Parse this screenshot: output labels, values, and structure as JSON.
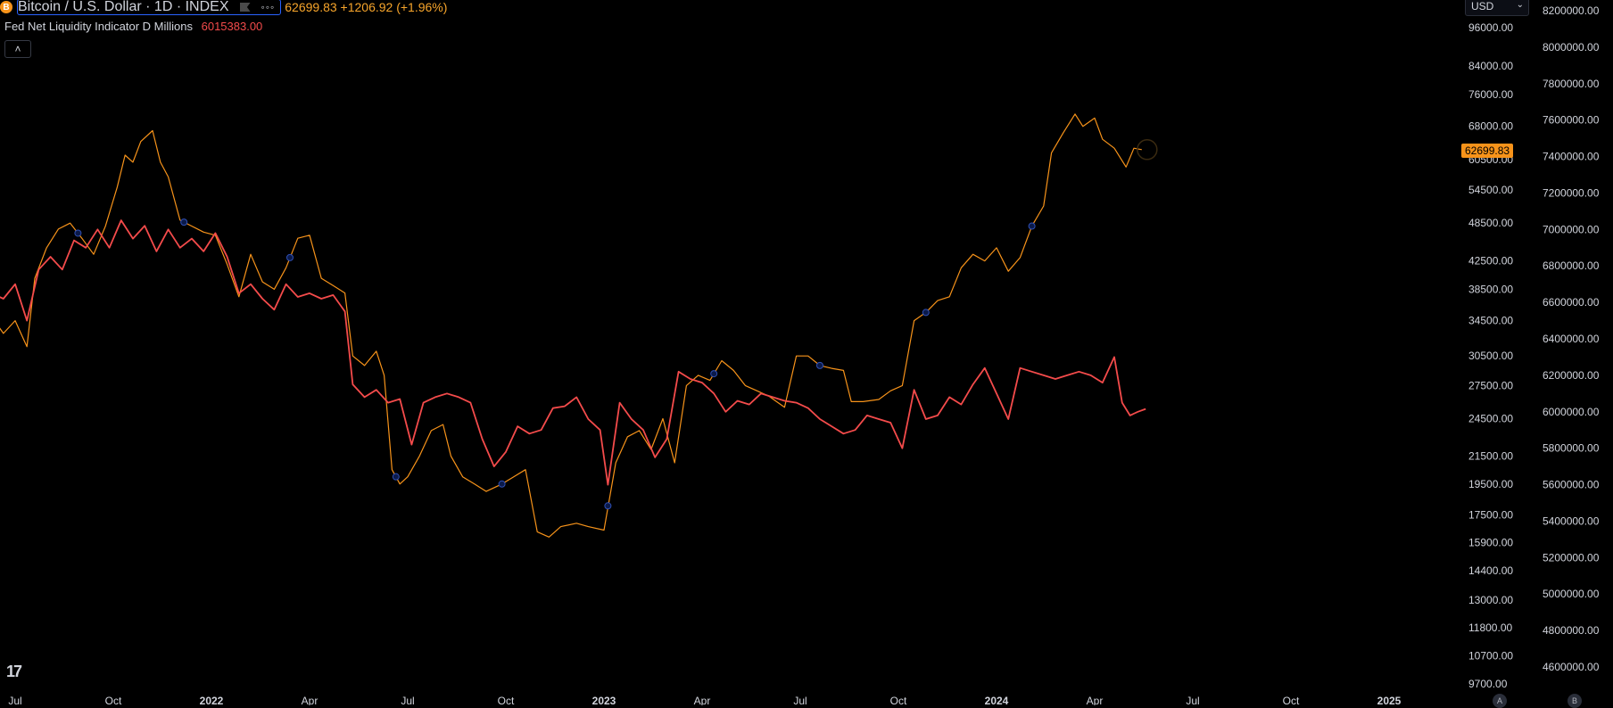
{
  "header": {
    "title": "Bitcoin / U.S. Dollar · 1D · INDEX",
    "btc_symbol": "B",
    "dots": "◦◦◦",
    "quote": "62699.83 +1206.92 (+1.96%)"
  },
  "indicator": {
    "name": "Fed Net Liquidity Indicator D Millions",
    "value": "6015383.00"
  },
  "collapse_glyph": "˄",
  "currency_selector": {
    "value": "USD",
    "chevron": "⌄"
  },
  "last_price_label": "62699.83",
  "logo_text": "17",
  "scale_buttons": [
    "A",
    "B"
  ],
  "chart_data": {
    "type": "line",
    "colors": {
      "btc": "#f7931a",
      "liquidity": "#f44b4b",
      "text": "#d1d4dc",
      "background": "#000000"
    },
    "x_tick_labels": [
      {
        "t": 2021.5,
        "label": "Jul",
        "bold": false
      },
      {
        "t": 2021.75,
        "label": "Oct",
        "bold": false
      },
      {
        "t": 2022.0,
        "label": "2022",
        "bold": true
      },
      {
        "t": 2022.25,
        "label": "Apr",
        "bold": false
      },
      {
        "t": 2022.5,
        "label": "Jul",
        "bold": false
      },
      {
        "t": 2022.75,
        "label": "Oct",
        "bold": false
      },
      {
        "t": 2023.0,
        "label": "2023",
        "bold": true
      },
      {
        "t": 2023.25,
        "label": "Apr",
        "bold": false
      },
      {
        "t": 2023.5,
        "label": "Jul",
        "bold": false
      },
      {
        "t": 2023.75,
        "label": "Oct",
        "bold": false
      },
      {
        "t": 2024.0,
        "label": "2024",
        "bold": true
      },
      {
        "t": 2024.25,
        "label": "Apr",
        "bold": false
      },
      {
        "t": 2024.5,
        "label": "Jul",
        "bold": false
      },
      {
        "t": 2024.75,
        "label": "Oct",
        "bold": false
      },
      {
        "t": 2025.0,
        "label": "2025",
        "bold": true
      }
    ],
    "left_axis_ticks": [
      96000,
      84000,
      76000,
      68000,
      60500,
      54500,
      48500,
      42500,
      38500,
      34500,
      30500,
      27500,
      24500,
      21500,
      19500,
      17500,
      15900,
      14400,
      13000,
      11800,
      10700,
      9700
    ],
    "left_axis_scale": "log",
    "right_axis_ticks": [
      8200000,
      8000000,
      7800000,
      7600000,
      7400000,
      7200000,
      7000000,
      6800000,
      6600000,
      6400000,
      6200000,
      6000000,
      5800000,
      5600000,
      5400000,
      5200000,
      5000000,
      4800000,
      4600000
    ],
    "right_axis_scale": "linear",
    "series": [
      {
        "key": "btc",
        "axis": "left",
        "points": [
          [
            2021.44,
            35000
          ],
          [
            2021.47,
            33000
          ],
          [
            2021.5,
            34500
          ],
          [
            2021.53,
            31500
          ],
          [
            2021.55,
            40000
          ],
          [
            2021.58,
            44500
          ],
          [
            2021.61,
            47500
          ],
          [
            2021.64,
            48500
          ],
          [
            2021.67,
            46000
          ],
          [
            2021.7,
            43500
          ],
          [
            2021.73,
            48000
          ],
          [
            2021.76,
            55000
          ],
          [
            2021.78,
            61500
          ],
          [
            2021.8,
            60000
          ],
          [
            2021.82,
            64500
          ],
          [
            2021.85,
            67000
          ],
          [
            2021.87,
            60000
          ],
          [
            2021.89,
            57000
          ],
          [
            2021.92,
            49000
          ],
          [
            2021.95,
            48000
          ],
          [
            2021.98,
            47000
          ],
          [
            2022.01,
            46500
          ],
          [
            2022.04,
            42000
          ],
          [
            2022.07,
            37500
          ],
          [
            2022.1,
            43500
          ],
          [
            2022.13,
            39500
          ],
          [
            2022.16,
            38500
          ],
          [
            2022.19,
            41500
          ],
          [
            2022.22,
            46000
          ],
          [
            2022.25,
            46500
          ],
          [
            2022.28,
            40000
          ],
          [
            2022.31,
            39000
          ],
          [
            2022.34,
            38000
          ],
          [
            2022.36,
            30500
          ],
          [
            2022.39,
            29500
          ],
          [
            2022.42,
            31000
          ],
          [
            2022.44,
            28500
          ],
          [
            2022.46,
            20500
          ],
          [
            2022.48,
            19500
          ],
          [
            2022.5,
            20000
          ],
          [
            2022.53,
            21500
          ],
          [
            2022.56,
            23500
          ],
          [
            2022.59,
            24000
          ],
          [
            2022.61,
            21500
          ],
          [
            2022.64,
            20000
          ],
          [
            2022.67,
            19500
          ],
          [
            2022.7,
            19000
          ],
          [
            2022.74,
            19500
          ],
          [
            2022.77,
            20000
          ],
          [
            2022.8,
            20500
          ],
          [
            2022.83,
            16500
          ],
          [
            2022.86,
            16200
          ],
          [
            2022.89,
            16800
          ],
          [
            2022.93,
            17000
          ],
          [
            2022.96,
            16800
          ],
          [
            2023.0,
            16600
          ],
          [
            2023.03,
            21000
          ],
          [
            2023.06,
            23000
          ],
          [
            2023.09,
            23500
          ],
          [
            2023.12,
            22000
          ],
          [
            2023.15,
            24500
          ],
          [
            2023.18,
            21000
          ],
          [
            2023.21,
            27500
          ],
          [
            2023.24,
            28500
          ],
          [
            2023.27,
            28000
          ],
          [
            2023.3,
            30000
          ],
          [
            2023.33,
            29000
          ],
          [
            2023.36,
            27500
          ],
          [
            2023.39,
            27000
          ],
          [
            2023.42,
            26500
          ],
          [
            2023.46,
            25500
          ],
          [
            2023.49,
            30500
          ],
          [
            2023.52,
            30500
          ],
          [
            2023.55,
            29500
          ],
          [
            2023.58,
            29200
          ],
          [
            2023.61,
            29000
          ],
          [
            2023.63,
            26000
          ],
          [
            2023.66,
            26000
          ],
          [
            2023.7,
            26200
          ],
          [
            2023.73,
            27000
          ],
          [
            2023.76,
            27500
          ],
          [
            2023.79,
            34500
          ],
          [
            2023.82,
            35500
          ],
          [
            2023.85,
            37000
          ],
          [
            2023.88,
            37500
          ],
          [
            2023.91,
            41500
          ],
          [
            2023.94,
            43500
          ],
          [
            2023.97,
            42500
          ],
          [
            2024.0,
            44500
          ],
          [
            2024.03,
            41000
          ],
          [
            2024.06,
            43000
          ],
          [
            2024.09,
            48000
          ],
          [
            2024.12,
            51500
          ],
          [
            2024.14,
            62000
          ],
          [
            2024.17,
            66500
          ],
          [
            2024.2,
            71000
          ],
          [
            2024.22,
            68000
          ],
          [
            2024.25,
            70000
          ],
          [
            2024.27,
            65000
          ],
          [
            2024.3,
            63000
          ],
          [
            2024.33,
            59000
          ],
          [
            2024.35,
            63000
          ],
          [
            2024.37,
            62699.83
          ]
        ]
      },
      {
        "key": "liquidity",
        "axis": "right",
        "points": [
          [
            2021.44,
            6650000
          ],
          [
            2021.47,
            6620000
          ],
          [
            2021.5,
            6700000
          ],
          [
            2021.53,
            6500000
          ],
          [
            2021.56,
            6780000
          ],
          [
            2021.59,
            6850000
          ],
          [
            2021.62,
            6780000
          ],
          [
            2021.65,
            6940000
          ],
          [
            2021.68,
            6900000
          ],
          [
            2021.71,
            7000000
          ],
          [
            2021.74,
            6900000
          ],
          [
            2021.77,
            7050000
          ],
          [
            2021.8,
            6950000
          ],
          [
            2021.83,
            7020000
          ],
          [
            2021.86,
            6880000
          ],
          [
            2021.89,
            7000000
          ],
          [
            2021.92,
            6900000
          ],
          [
            2021.95,
            6950000
          ],
          [
            2021.98,
            6880000
          ],
          [
            2022.01,
            6980000
          ],
          [
            2022.04,
            6850000
          ],
          [
            2022.07,
            6650000
          ],
          [
            2022.1,
            6700000
          ],
          [
            2022.13,
            6620000
          ],
          [
            2022.16,
            6560000
          ],
          [
            2022.19,
            6700000
          ],
          [
            2022.22,
            6630000
          ],
          [
            2022.25,
            6650000
          ],
          [
            2022.28,
            6620000
          ],
          [
            2022.31,
            6640000
          ],
          [
            2022.34,
            6550000
          ],
          [
            2022.36,
            6150000
          ],
          [
            2022.39,
            6080000
          ],
          [
            2022.42,
            6120000
          ],
          [
            2022.45,
            6050000
          ],
          [
            2022.48,
            6070000
          ],
          [
            2022.51,
            5820000
          ],
          [
            2022.54,
            6050000
          ],
          [
            2022.57,
            6080000
          ],
          [
            2022.6,
            6100000
          ],
          [
            2022.63,
            6080000
          ],
          [
            2022.66,
            6050000
          ],
          [
            2022.69,
            5850000
          ],
          [
            2022.72,
            5700000
          ],
          [
            2022.75,
            5780000
          ],
          [
            2022.78,
            5920000
          ],
          [
            2022.81,
            5880000
          ],
          [
            2022.84,
            5900000
          ],
          [
            2022.87,
            6020000
          ],
          [
            2022.9,
            6030000
          ],
          [
            2022.93,
            6080000
          ],
          [
            2022.96,
            5960000
          ],
          [
            2022.99,
            5900000
          ],
          [
            2023.01,
            5600000
          ],
          [
            2023.04,
            6050000
          ],
          [
            2023.07,
            5960000
          ],
          [
            2023.1,
            5900000
          ],
          [
            2023.13,
            5750000
          ],
          [
            2023.16,
            5850000
          ],
          [
            2023.19,
            6220000
          ],
          [
            2023.22,
            6180000
          ],
          [
            2023.25,
            6160000
          ],
          [
            2023.28,
            6100000
          ],
          [
            2023.31,
            6000000
          ],
          [
            2023.34,
            6060000
          ],
          [
            2023.37,
            6040000
          ],
          [
            2023.4,
            6100000
          ],
          [
            2023.43,
            6080000
          ],
          [
            2023.46,
            6060000
          ],
          [
            2023.49,
            6050000
          ],
          [
            2023.52,
            6020000
          ],
          [
            2023.55,
            5960000
          ],
          [
            2023.58,
            5920000
          ],
          [
            2023.61,
            5880000
          ],
          [
            2023.64,
            5900000
          ],
          [
            2023.67,
            5980000
          ],
          [
            2023.7,
            5960000
          ],
          [
            2023.73,
            5940000
          ],
          [
            2023.76,
            5800000
          ],
          [
            2023.79,
            6120000
          ],
          [
            2023.82,
            5960000
          ],
          [
            2023.85,
            5980000
          ],
          [
            2023.88,
            6080000
          ],
          [
            2023.91,
            6040000
          ],
          [
            2023.94,
            6150000
          ],
          [
            2023.97,
            6240000
          ],
          [
            2024.0,
            6100000
          ],
          [
            2024.03,
            5960000
          ],
          [
            2024.06,
            6240000
          ],
          [
            2024.09,
            6220000
          ],
          [
            2024.12,
            6200000
          ],
          [
            2024.15,
            6180000
          ],
          [
            2024.18,
            6200000
          ],
          [
            2024.21,
            6220000
          ],
          [
            2024.24,
            6200000
          ],
          [
            2024.27,
            6160000
          ],
          [
            2024.3,
            6300000
          ],
          [
            2024.32,
            6050000
          ],
          [
            2024.34,
            5980000
          ],
          [
            2024.36,
            6000000
          ],
          [
            2024.38,
            6015383
          ]
        ]
      }
    ],
    "event_markers": [
      {
        "t": 2021.66,
        "series": "btc"
      },
      {
        "t": 2021.93,
        "series": "btc"
      },
      {
        "t": 2022.2,
        "series": "btc"
      },
      {
        "t": 2022.47,
        "series": "btc"
      },
      {
        "t": 2022.74,
        "series": "btc"
      },
      {
        "t": 2023.01,
        "series": "btc"
      },
      {
        "t": 2023.28,
        "series": "btc"
      },
      {
        "t": 2023.55,
        "series": "btc"
      },
      {
        "t": 2023.82,
        "series": "btc"
      },
      {
        "t": 2024.09,
        "series": "btc"
      }
    ]
  }
}
